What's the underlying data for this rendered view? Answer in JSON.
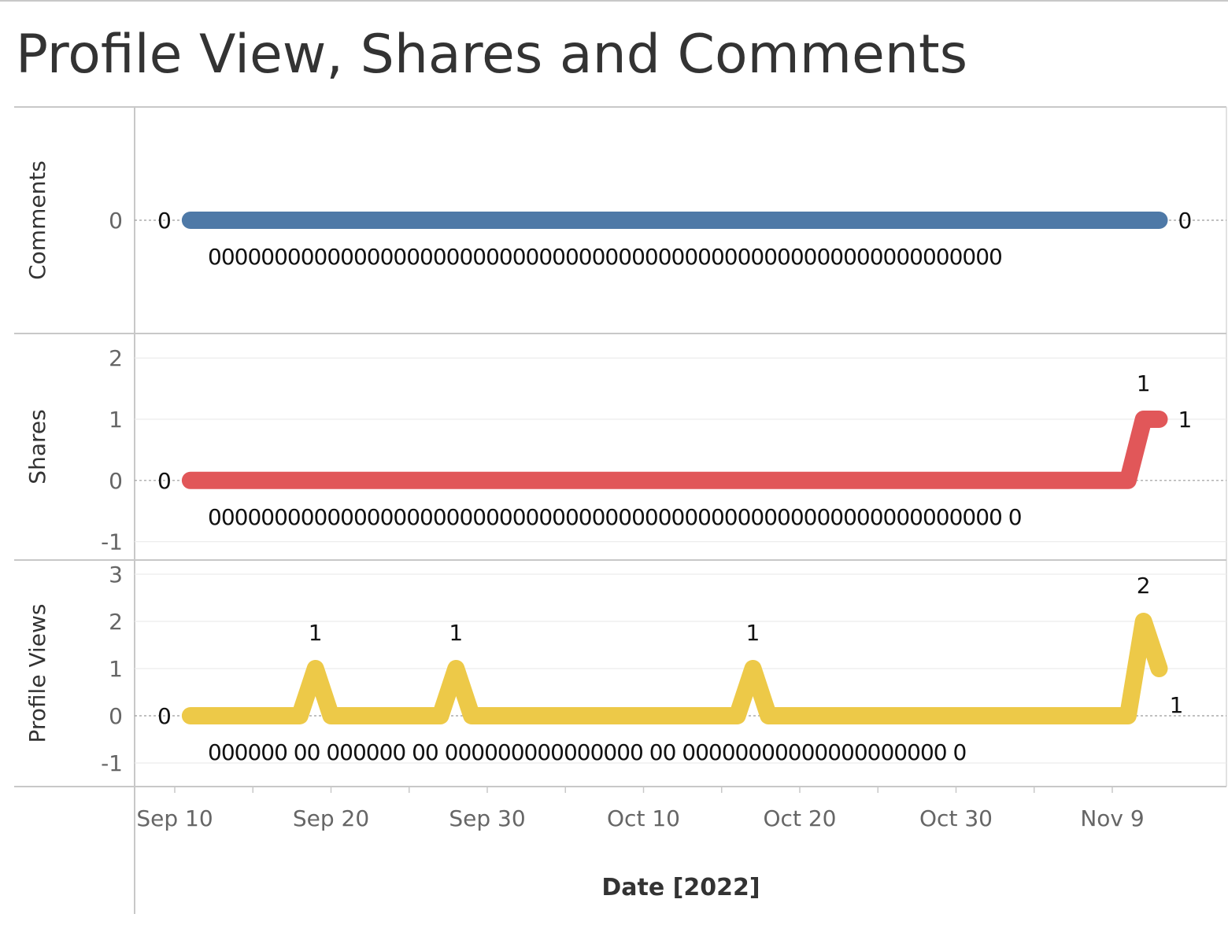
{
  "title": "Profile View, Shares and Comments",
  "chart_data": {
    "type": "line",
    "title": "Profile View, Shares and Comments",
    "xlabel": "Date [2022]",
    "x_ticks": [
      "Sep 10",
      "Sep 20",
      "Sep 30",
      "Oct 10",
      "Oct 20",
      "Oct 30",
      "Nov 9"
    ],
    "xlim": [
      "2022-09-08",
      "2022-11-14"
    ],
    "grid": true,
    "legend": "none",
    "panels": [
      {
        "ylabel": "Comments",
        "color": "#4e79a7",
        "yticks": [
          0
        ],
        "ylim": [
          -1,
          1
        ],
        "points": [
          {
            "x": "2022-09-11",
            "y": 0
          },
          {
            "x": "2022-11-12",
            "y": 0
          }
        ],
        "tick_labels": [
          "000000000000000000000000000000000000000000000000000000000000"
        ],
        "data_labels": [
          {
            "x": "2022-09-11",
            "y": 0,
            "text": "0",
            "pos": "left"
          },
          {
            "x": "2022-11-12",
            "y": 0,
            "text": "0",
            "pos": "right"
          }
        ]
      },
      {
        "ylabel": "Shares",
        "color": "#e15759",
        "yticks": [
          -1,
          0,
          1,
          2
        ],
        "ylim": [
          -1.3,
          2.4
        ],
        "points": [
          {
            "x": "2022-09-11",
            "y": 0
          },
          {
            "x": "2022-11-10",
            "y": 0
          },
          {
            "x": "2022-11-11",
            "y": 1
          },
          {
            "x": "2022-11-12",
            "y": 1
          }
        ],
        "tick_labels": [
          "000000000000000000000000000000000000000000000000000000000000 0"
        ],
        "data_labels": [
          {
            "x": "2022-09-11",
            "y": 0,
            "text": "0",
            "pos": "left"
          },
          {
            "x": "2022-11-11",
            "y": 1,
            "text": "1",
            "pos": "above"
          },
          {
            "x": "2022-11-12",
            "y": 1,
            "text": "1",
            "pos": "right"
          }
        ]
      },
      {
        "ylabel": "Profile Views",
        "color": "#edc948",
        "yticks": [
          -1,
          0,
          1,
          2,
          3
        ],
        "ylim": [
          -1.5,
          3.3
        ],
        "points": [
          {
            "x": "2022-09-11",
            "y": 0
          },
          {
            "x": "2022-09-18",
            "y": 0
          },
          {
            "x": "2022-09-19",
            "y": 1
          },
          {
            "x": "2022-09-20",
            "y": 0
          },
          {
            "x": "2022-09-27",
            "y": 0
          },
          {
            "x": "2022-09-28",
            "y": 1
          },
          {
            "x": "2022-09-29",
            "y": 0
          },
          {
            "x": "2022-10-16",
            "y": 0
          },
          {
            "x": "2022-10-17",
            "y": 1
          },
          {
            "x": "2022-10-18",
            "y": 0
          },
          {
            "x": "2022-11-10",
            "y": 0
          },
          {
            "x": "2022-11-11",
            "y": 2
          },
          {
            "x": "2022-11-12",
            "y": 1
          }
        ],
        "tick_labels": [
          "000000 00 000000 00 000000000000000 00 00000000000000000000 0"
        ],
        "data_labels": [
          {
            "x": "2022-09-11",
            "y": 0,
            "text": "0",
            "pos": "left"
          },
          {
            "x": "2022-09-19",
            "y": 1,
            "text": "1",
            "pos": "above"
          },
          {
            "x": "2022-09-28",
            "y": 1,
            "text": "1",
            "pos": "above"
          },
          {
            "x": "2022-10-17",
            "y": 1,
            "text": "1",
            "pos": "above"
          },
          {
            "x": "2022-11-11",
            "y": 2,
            "text": "2",
            "pos": "above"
          },
          {
            "x": "2022-11-12",
            "y": 1,
            "text": "1",
            "pos": "below"
          }
        ]
      }
    ]
  }
}
